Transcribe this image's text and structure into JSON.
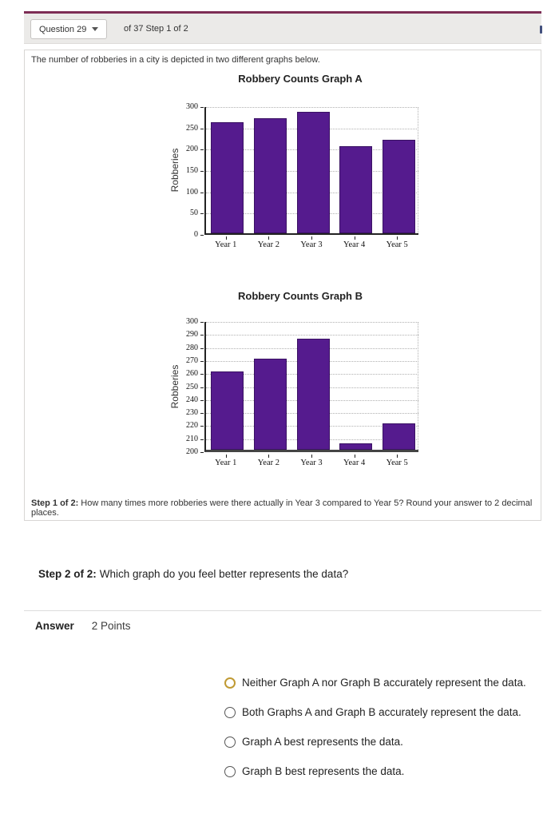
{
  "header": {
    "question_label": "Question 29",
    "progress_text": "of 37 Step 1 of 2"
  },
  "question": {
    "intro": "The number of robberies in a city is depicted in two different graphs below.",
    "step1_label": "Step 1 of 2:",
    "step1_text": "How many times more robberies were there actually in Year 3 compared to Year 5? Round your answer to 2 decimal places.",
    "step2_label": "Step 2 of 2:",
    "step2_text": "Which graph do you feel better represents the data?"
  },
  "answer_section": {
    "answer_label": "Answer",
    "points_label": "2 Points",
    "options": [
      {
        "label": "Neither Graph A nor Graph B accurately represent the data.",
        "state": "focused"
      },
      {
        "label": "Both Graphs A and Graph B accurately represent the data.",
        "state": "normal"
      },
      {
        "label": "Graph A best represents the data.",
        "state": "normal"
      },
      {
        "label": "Graph B best represents the data.",
        "state": "normal"
      }
    ]
  },
  "chart_data": [
    {
      "type": "bar",
      "title": "Robbery Counts Graph A",
      "ylabel": "Robberies",
      "categories": [
        "Year 1",
        "Year 2",
        "Year 3",
        "Year 4",
        "Year 5"
      ],
      "values": [
        260,
        270,
        285,
        205,
        220
      ],
      "ylim": [
        0,
        300
      ],
      "ytick_step": 50,
      "grid": "dotted-horizontal",
      "legend": "none",
      "bar_color": "#551b8e"
    },
    {
      "type": "bar",
      "title": "Robbery Counts Graph B",
      "ylabel": "Robberies",
      "categories": [
        "Year 1",
        "Year 2",
        "Year 3",
        "Year 4",
        "Year 5"
      ],
      "values": [
        260,
        270,
        285,
        205,
        220
      ],
      "ylim": [
        200,
        300
      ],
      "ytick_step": 10,
      "grid": "dotted-horizontal",
      "legend": "none",
      "bar_color": "#551b8e"
    }
  ],
  "colors": {
    "accent_top_line": "#7d2d55",
    "bar_purple": "#551b8e",
    "focus_ring_gold": "#c09a33",
    "header_gray": "#ebeae8"
  }
}
